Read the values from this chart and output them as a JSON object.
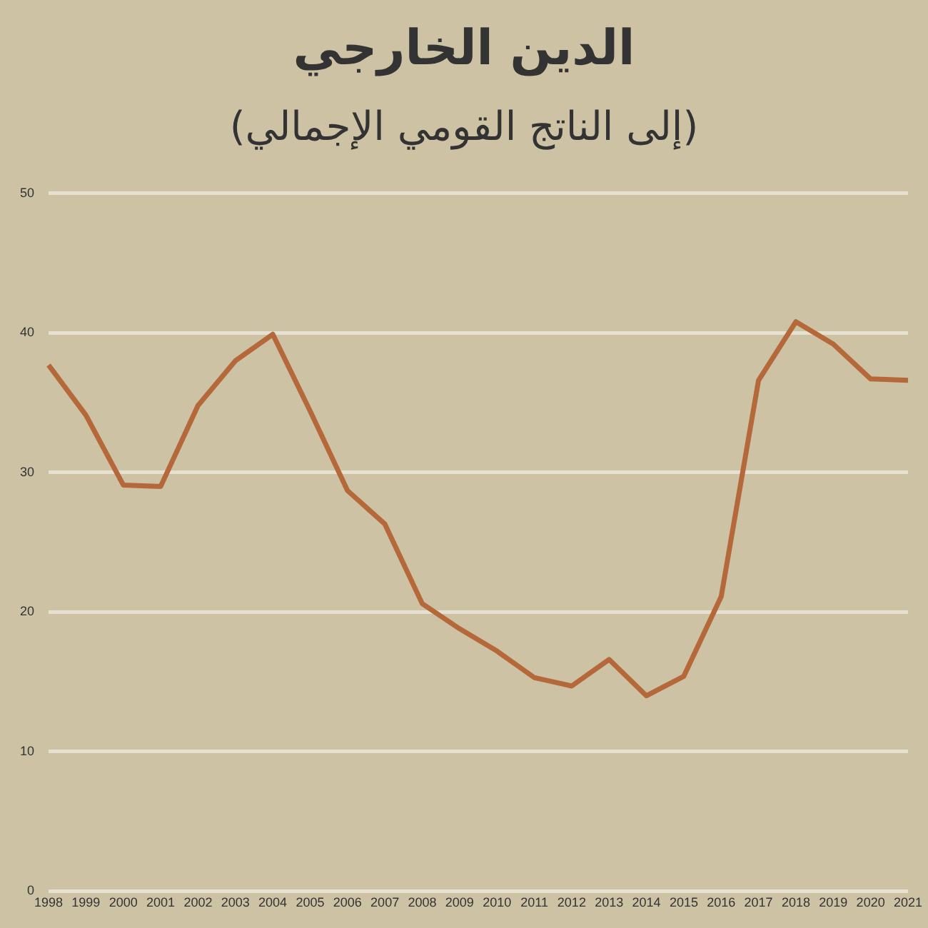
{
  "chart_data": {
    "type": "line",
    "title": "الدين الخارجي",
    "subtitle": "(إلى الناتج القومي الإجمالي)",
    "categories": [
      "1998",
      "1999",
      "2000",
      "2001",
      "2002",
      "2003",
      "2004",
      "2005",
      "2006",
      "2007",
      "2008",
      "2009",
      "2010",
      "2011",
      "2012",
      "2013",
      "2014",
      "2015",
      "2016",
      "2017",
      "2018",
      "2019",
      "2020",
      "2021"
    ],
    "series": [
      {
        "color": "#b5683a",
        "values": [
          37.7,
          34.1,
          29.1,
          29.0,
          34.8,
          38.0,
          39.9,
          34.4,
          28.7,
          26.3,
          20.6,
          18.8,
          17.2,
          15.3,
          14.7,
          16.6,
          14.0,
          15.4,
          21.1,
          36.6,
          40.8,
          39.2,
          36.7,
          36.6
        ]
      }
    ],
    "ylim": [
      0,
      50
    ],
    "yticks": [
      0,
      10,
      20,
      30,
      40,
      50
    ],
    "grid": "y",
    "marker": "none",
    "line_style": "solid"
  }
}
